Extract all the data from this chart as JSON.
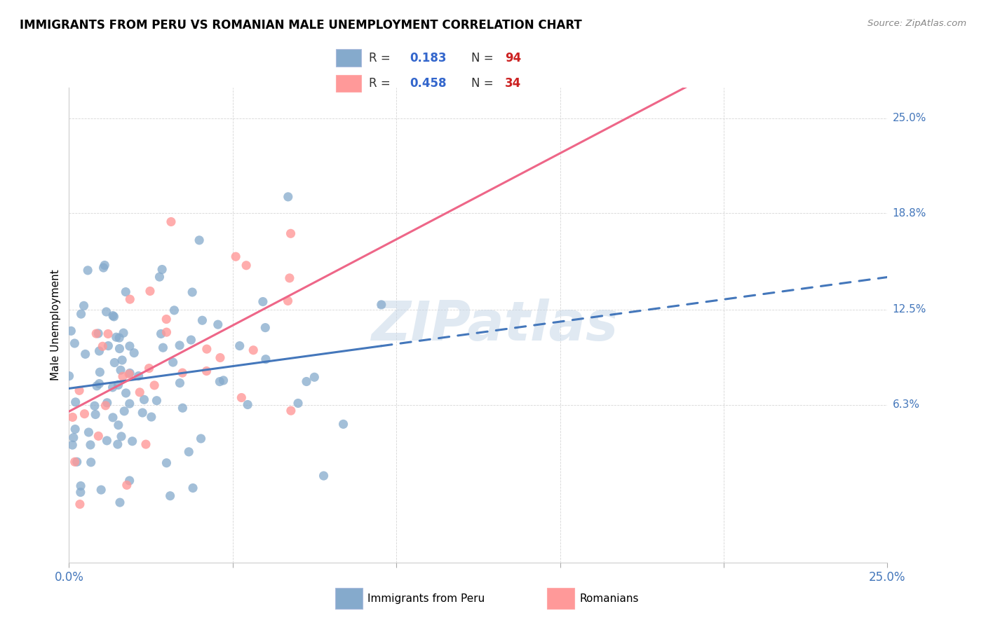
{
  "title": "IMMIGRANTS FROM PERU VS ROMANIAN MALE UNEMPLOYMENT CORRELATION CHART",
  "source": "Source: ZipAtlas.com",
  "ylabel": "Male Unemployment",
  "color_blue": "#85AACC",
  "color_pink": "#FF9999",
  "color_blue_line": "#4477BB",
  "color_pink_line": "#EE6688",
  "r_peru": 0.183,
  "n_peru": 94,
  "r_roman": 0.458,
  "n_roman": 34,
  "xlim": [
    0.0,
    0.25
  ],
  "ylim": [
    -0.04,
    0.27
  ],
  "ytick_vals": [
    0.063,
    0.125,
    0.188,
    0.25
  ],
  "ytick_labels": [
    "6.3%",
    "12.5%",
    "18.8%",
    "25.0%"
  ],
  "seed": 7
}
